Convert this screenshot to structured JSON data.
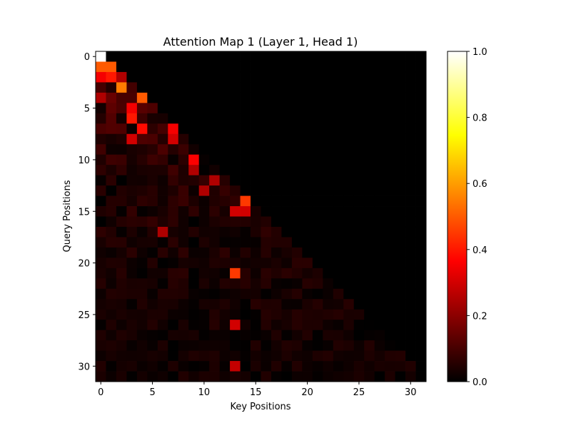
{
  "chart_data": {
    "type": "heatmap",
    "title": "Attention Map 1 (Layer 1, Head 1)",
    "xlabel": "Key Positions",
    "ylabel": "Query Positions",
    "rows": 32,
    "cols": 32,
    "mask": "lower-triangular (causal)",
    "colormap": "hot",
    "color_range": [
      0.0,
      1.0
    ],
    "x_ticks": [
      0,
      5,
      10,
      15,
      20,
      25,
      30
    ],
    "y_ticks": [
      0,
      5,
      10,
      15,
      20,
      25,
      30
    ],
    "x_tick_labels": [
      "0",
      "5",
      "10",
      "15",
      "20",
      "25",
      "30"
    ],
    "y_tick_labels": [
      "0",
      "5",
      "10",
      "15",
      "20",
      "25",
      "30"
    ],
    "colorbar_ticks": [
      0.0,
      0.2,
      0.4,
      0.6,
      0.8,
      1.0
    ],
    "colorbar_tick_labels": [
      "0.0",
      "0.2",
      "0.4",
      "0.6",
      "0.8",
      "1.0"
    ],
    "highlights": [
      {
        "row": 0,
        "col": 0,
        "value": 1.0
      },
      {
        "row": 1,
        "col": 0,
        "value": 0.5
      },
      {
        "row": 1,
        "col": 1,
        "value": 0.5
      },
      {
        "row": 2,
        "col": 0,
        "value": 0.35
      },
      {
        "row": 2,
        "col": 1,
        "value": 0.4
      },
      {
        "row": 2,
        "col": 2,
        "value": 0.25
      },
      {
        "row": 3,
        "col": 2,
        "value": 0.55
      },
      {
        "row": 4,
        "col": 4,
        "value": 0.5
      },
      {
        "row": 4,
        "col": 0,
        "value": 0.25
      },
      {
        "row": 5,
        "col": 3,
        "value": 0.35
      },
      {
        "row": 6,
        "col": 3,
        "value": 0.4
      },
      {
        "row": 7,
        "col": 4,
        "value": 0.38
      },
      {
        "row": 7,
        "col": 7,
        "value": 0.35
      },
      {
        "row": 8,
        "col": 7,
        "value": 0.3
      },
      {
        "row": 8,
        "col": 3,
        "value": 0.3
      },
      {
        "row": 10,
        "col": 9,
        "value": 0.36
      },
      {
        "row": 11,
        "col": 9,
        "value": 0.25
      },
      {
        "row": 12,
        "col": 11,
        "value": 0.25
      },
      {
        "row": 13,
        "col": 10,
        "value": 0.25
      },
      {
        "row": 14,
        "col": 14,
        "value": 0.45
      },
      {
        "row": 15,
        "col": 13,
        "value": 0.3
      },
      {
        "row": 15,
        "col": 14,
        "value": 0.3
      },
      {
        "row": 17,
        "col": 6,
        "value": 0.25
      },
      {
        "row": 21,
        "col": 13,
        "value": 0.45
      },
      {
        "row": 26,
        "col": 13,
        "value": 0.3
      },
      {
        "row": 30,
        "col": 13,
        "value": 0.28
      }
    ],
    "background_range": [
      0.0,
      0.15
    ]
  }
}
